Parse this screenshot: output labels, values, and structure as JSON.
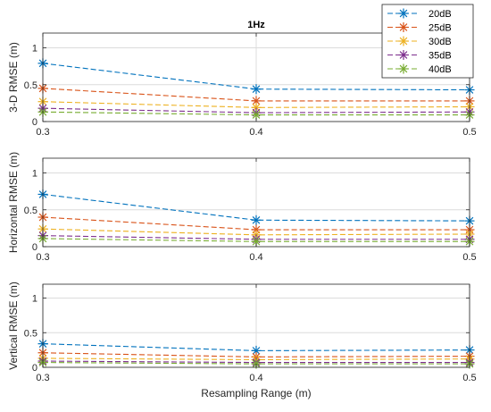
{
  "chart_data": [
    {
      "type": "line",
      "title": "1Hz",
      "xlabel": "",
      "ylabel": "3-D RMSE (m)",
      "x": [
        0.3,
        0.4,
        0.5
      ],
      "xlim": [
        0.3,
        0.5
      ],
      "ylim": [
        0,
        1.2
      ],
      "xticks": [
        "0.3",
        "0.4",
        "0.5"
      ],
      "yticks": [
        "0",
        "0.5",
        "1"
      ],
      "grid": true,
      "series": [
        {
          "name": "20dB",
          "color": "#0072BD",
          "values": [
            0.79,
            0.44,
            0.43
          ]
        },
        {
          "name": "25dB",
          "color": "#D95319",
          "values": [
            0.45,
            0.28,
            0.28
          ]
        },
        {
          "name": "30dB",
          "color": "#EDB120",
          "values": [
            0.27,
            0.19,
            0.2
          ]
        },
        {
          "name": "35dB",
          "color": "#7E2F8E",
          "values": [
            0.18,
            0.12,
            0.13
          ]
        },
        {
          "name": "40dB",
          "color": "#77AC30",
          "values": [
            0.13,
            0.09,
            0.09
          ]
        }
      ]
    },
    {
      "type": "line",
      "title": "",
      "xlabel": "",
      "ylabel": "Horizontal RMSE (m)",
      "x": [
        0.3,
        0.4,
        0.5
      ],
      "xlim": [
        0.3,
        0.5
      ],
      "ylim": [
        0,
        1.2
      ],
      "xticks": [
        "0.3",
        "0.4",
        "0.5"
      ],
      "yticks": [
        "0",
        "0.5",
        "1"
      ],
      "grid": true,
      "series": [
        {
          "name": "20dB",
          "color": "#0072BD",
          "values": [
            0.71,
            0.36,
            0.35
          ]
        },
        {
          "name": "25dB",
          "color": "#D95319",
          "values": [
            0.4,
            0.23,
            0.23
          ]
        },
        {
          "name": "30dB",
          "color": "#EDB120",
          "values": [
            0.24,
            0.16,
            0.17
          ]
        },
        {
          "name": "35dB",
          "color": "#7E2F8E",
          "values": [
            0.15,
            0.1,
            0.1
          ]
        },
        {
          "name": "40dB",
          "color": "#77AC30",
          "values": [
            0.11,
            0.07,
            0.07
          ]
        }
      ]
    },
    {
      "type": "line",
      "title": "",
      "xlabel": "Resampling Range (m)",
      "ylabel": "Vertical RMSE (m)",
      "x": [
        0.3,
        0.4,
        0.5
      ],
      "xlim": [
        0.3,
        0.5
      ],
      "ylim": [
        0,
        1.2
      ],
      "xticks": [
        "0.3",
        "0.4",
        "0.5"
      ],
      "yticks": [
        "0",
        "0.5",
        "1"
      ],
      "grid": true,
      "series": [
        {
          "name": "20dB",
          "color": "#0072BD",
          "values": [
            0.34,
            0.24,
            0.25
          ]
        },
        {
          "name": "25dB",
          "color": "#D95319",
          "values": [
            0.21,
            0.15,
            0.16
          ]
        },
        {
          "name": "30dB",
          "color": "#EDB120",
          "values": [
            0.13,
            0.11,
            0.12
          ]
        },
        {
          "name": "35dB",
          "color": "#7E2F8E",
          "values": [
            0.09,
            0.07,
            0.07
          ]
        },
        {
          "name": "40dB",
          "color": "#77AC30",
          "values": [
            0.07,
            0.05,
            0.05
          ]
        }
      ]
    }
  ],
  "legend": {
    "placement": "top-right",
    "entries": [
      "20dB",
      "25dB",
      "30dB",
      "35dB",
      "40dB"
    ]
  },
  "style": {
    "grid_color": "#dcdcdc",
    "axis_color": "#262626"
  }
}
